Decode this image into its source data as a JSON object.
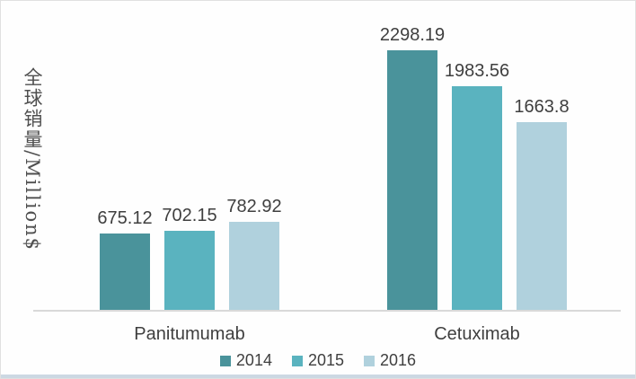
{
  "chart_data": {
    "type": "bar",
    "title": "",
    "ylabel": "全球销量/Million$",
    "xlabel": "",
    "categories": [
      "Panitumumab",
      "Cetuximab"
    ],
    "series": [
      {
        "name": "2014",
        "color": "#4a939b",
        "values": [
          675.12,
          2298.19
        ]
      },
      {
        "name": "2015",
        "color": "#5ab3bf",
        "values": [
          702.15,
          1983.56
        ]
      },
      {
        "name": "2016",
        "color": "#b0d1dd",
        "values": [
          782.92,
          1663.8
        ]
      }
    ],
    "data_labels_shown": true,
    "ylim": [
      0,
      2400
    ],
    "y_ticks_shown": false,
    "grid": false,
    "legend_position": "bottom",
    "legend_entries": [
      "2014",
      "2015",
      "2016"
    ],
    "axis_color": "#d9d9d9",
    "text_color": "#3f3f3f"
  }
}
